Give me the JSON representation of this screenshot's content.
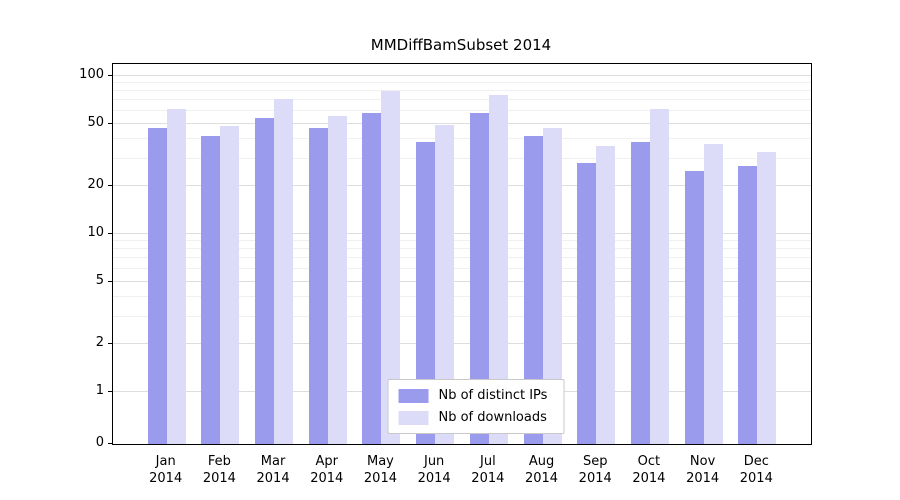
{
  "chart_data": {
    "type": "bar",
    "title": "MMDiffBamSubset 2014",
    "categories": [
      "Jan",
      "Feb",
      "Mar",
      "Apr",
      "May",
      "Jun",
      "Jul",
      "Aug",
      "Sep",
      "Oct",
      "Nov",
      "Dec"
    ],
    "year": "2014",
    "series": [
      {
        "name": "Nb of distinct IPs",
        "color": "#9b9bee",
        "values": [
          47,
          42,
          54,
          47,
          58,
          38,
          58,
          42,
          28,
          38,
          25,
          27
        ]
      },
      {
        "name": "Nb of downloads",
        "color": "#dcdcf9",
        "values": [
          62,
          48,
          72,
          56,
          80,
          49,
          76,
          47,
          36,
          62,
          37,
          33
        ]
      }
    ],
    "yscale": "log",
    "yticks": [
      0,
      1,
      2,
      5,
      10,
      20,
      50,
      100
    ],
    "ylim": [
      0,
      110
    ],
    "grid": "horizontal",
    "legend_position": "bottom-center"
  }
}
